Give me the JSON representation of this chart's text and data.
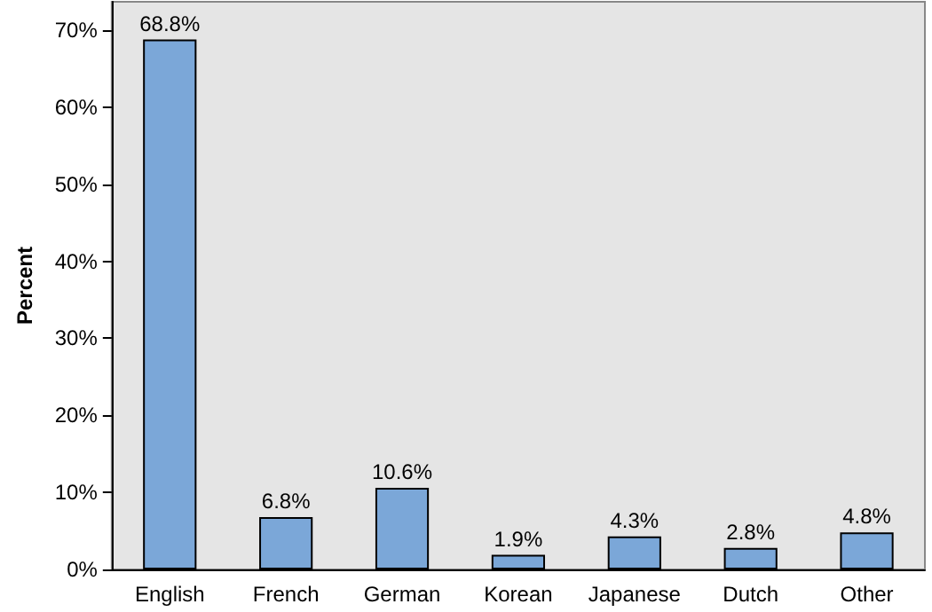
{
  "chart_data": {
    "type": "bar",
    "ylabel": "Percent",
    "categories": [
      "English",
      "French",
      "German",
      "Korean",
      "Japanese",
      "Dutch",
      "Other"
    ],
    "values": [
      68.8,
      6.8,
      10.6,
      1.9,
      4.3,
      2.8,
      4.8
    ],
    "value_labels": [
      "68.8%",
      "6.8%",
      "10.6%",
      "1.9%",
      "4.3%",
      "2.8%",
      "4.8%"
    ],
    "color": "#7ba7d8",
    "ylim": [
      0,
      73.7
    ],
    "yticks": [
      {
        "value": 0,
        "label": "0%"
      },
      {
        "value": 10,
        "label": "10%"
      },
      {
        "value": 20,
        "label": "20%"
      },
      {
        "value": 30,
        "label": "30%"
      },
      {
        "value": 40,
        "label": "40%"
      },
      {
        "value": 50,
        "label": "50%"
      },
      {
        "value": 60,
        "label": "60%"
      },
      {
        "value": 70,
        "label": "70%"
      }
    ],
    "grid": false
  }
}
